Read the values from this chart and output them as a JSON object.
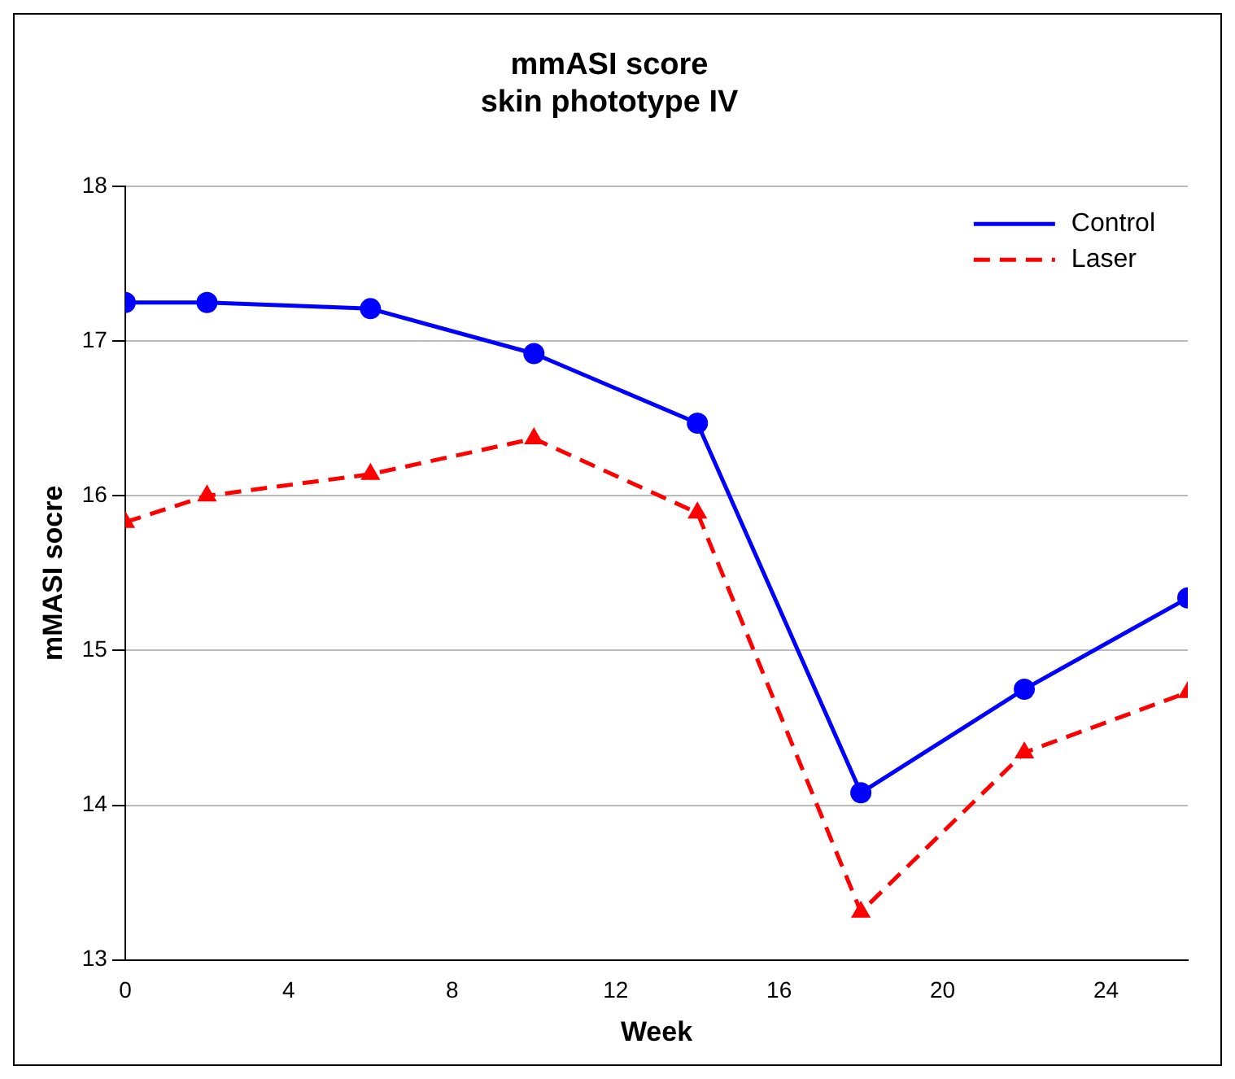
{
  "chart_data": {
    "type": "line",
    "title": "mmASI score\nskin phototype IV",
    "xlabel": "Week",
    "ylabel": "mMASI socre",
    "x": [
      0,
      2,
      6,
      10,
      14,
      18,
      22,
      26
    ],
    "series": [
      {
        "name": "Control",
        "color": "#0000ff",
        "marker": "circle",
        "line_style": "solid",
        "values": [
          17.25,
          17.25,
          17.21,
          16.92,
          16.47,
          14.08,
          14.75,
          15.34
        ]
      },
      {
        "name": "Laser",
        "color": "#ff0000",
        "marker": "triangle",
        "line_style": "dashed",
        "values": [
          15.83,
          16.0,
          16.14,
          16.37,
          15.89,
          13.31,
          14.34,
          14.73
        ]
      }
    ],
    "xlim": [
      0,
      26
    ],
    "xticks": [
      0,
      4,
      8,
      12,
      16,
      20,
      24
    ],
    "ylim": [
      13,
      18
    ],
    "yticks": [
      13,
      14,
      15,
      16,
      17,
      18
    ],
    "grid": "y",
    "legend": "top right"
  }
}
